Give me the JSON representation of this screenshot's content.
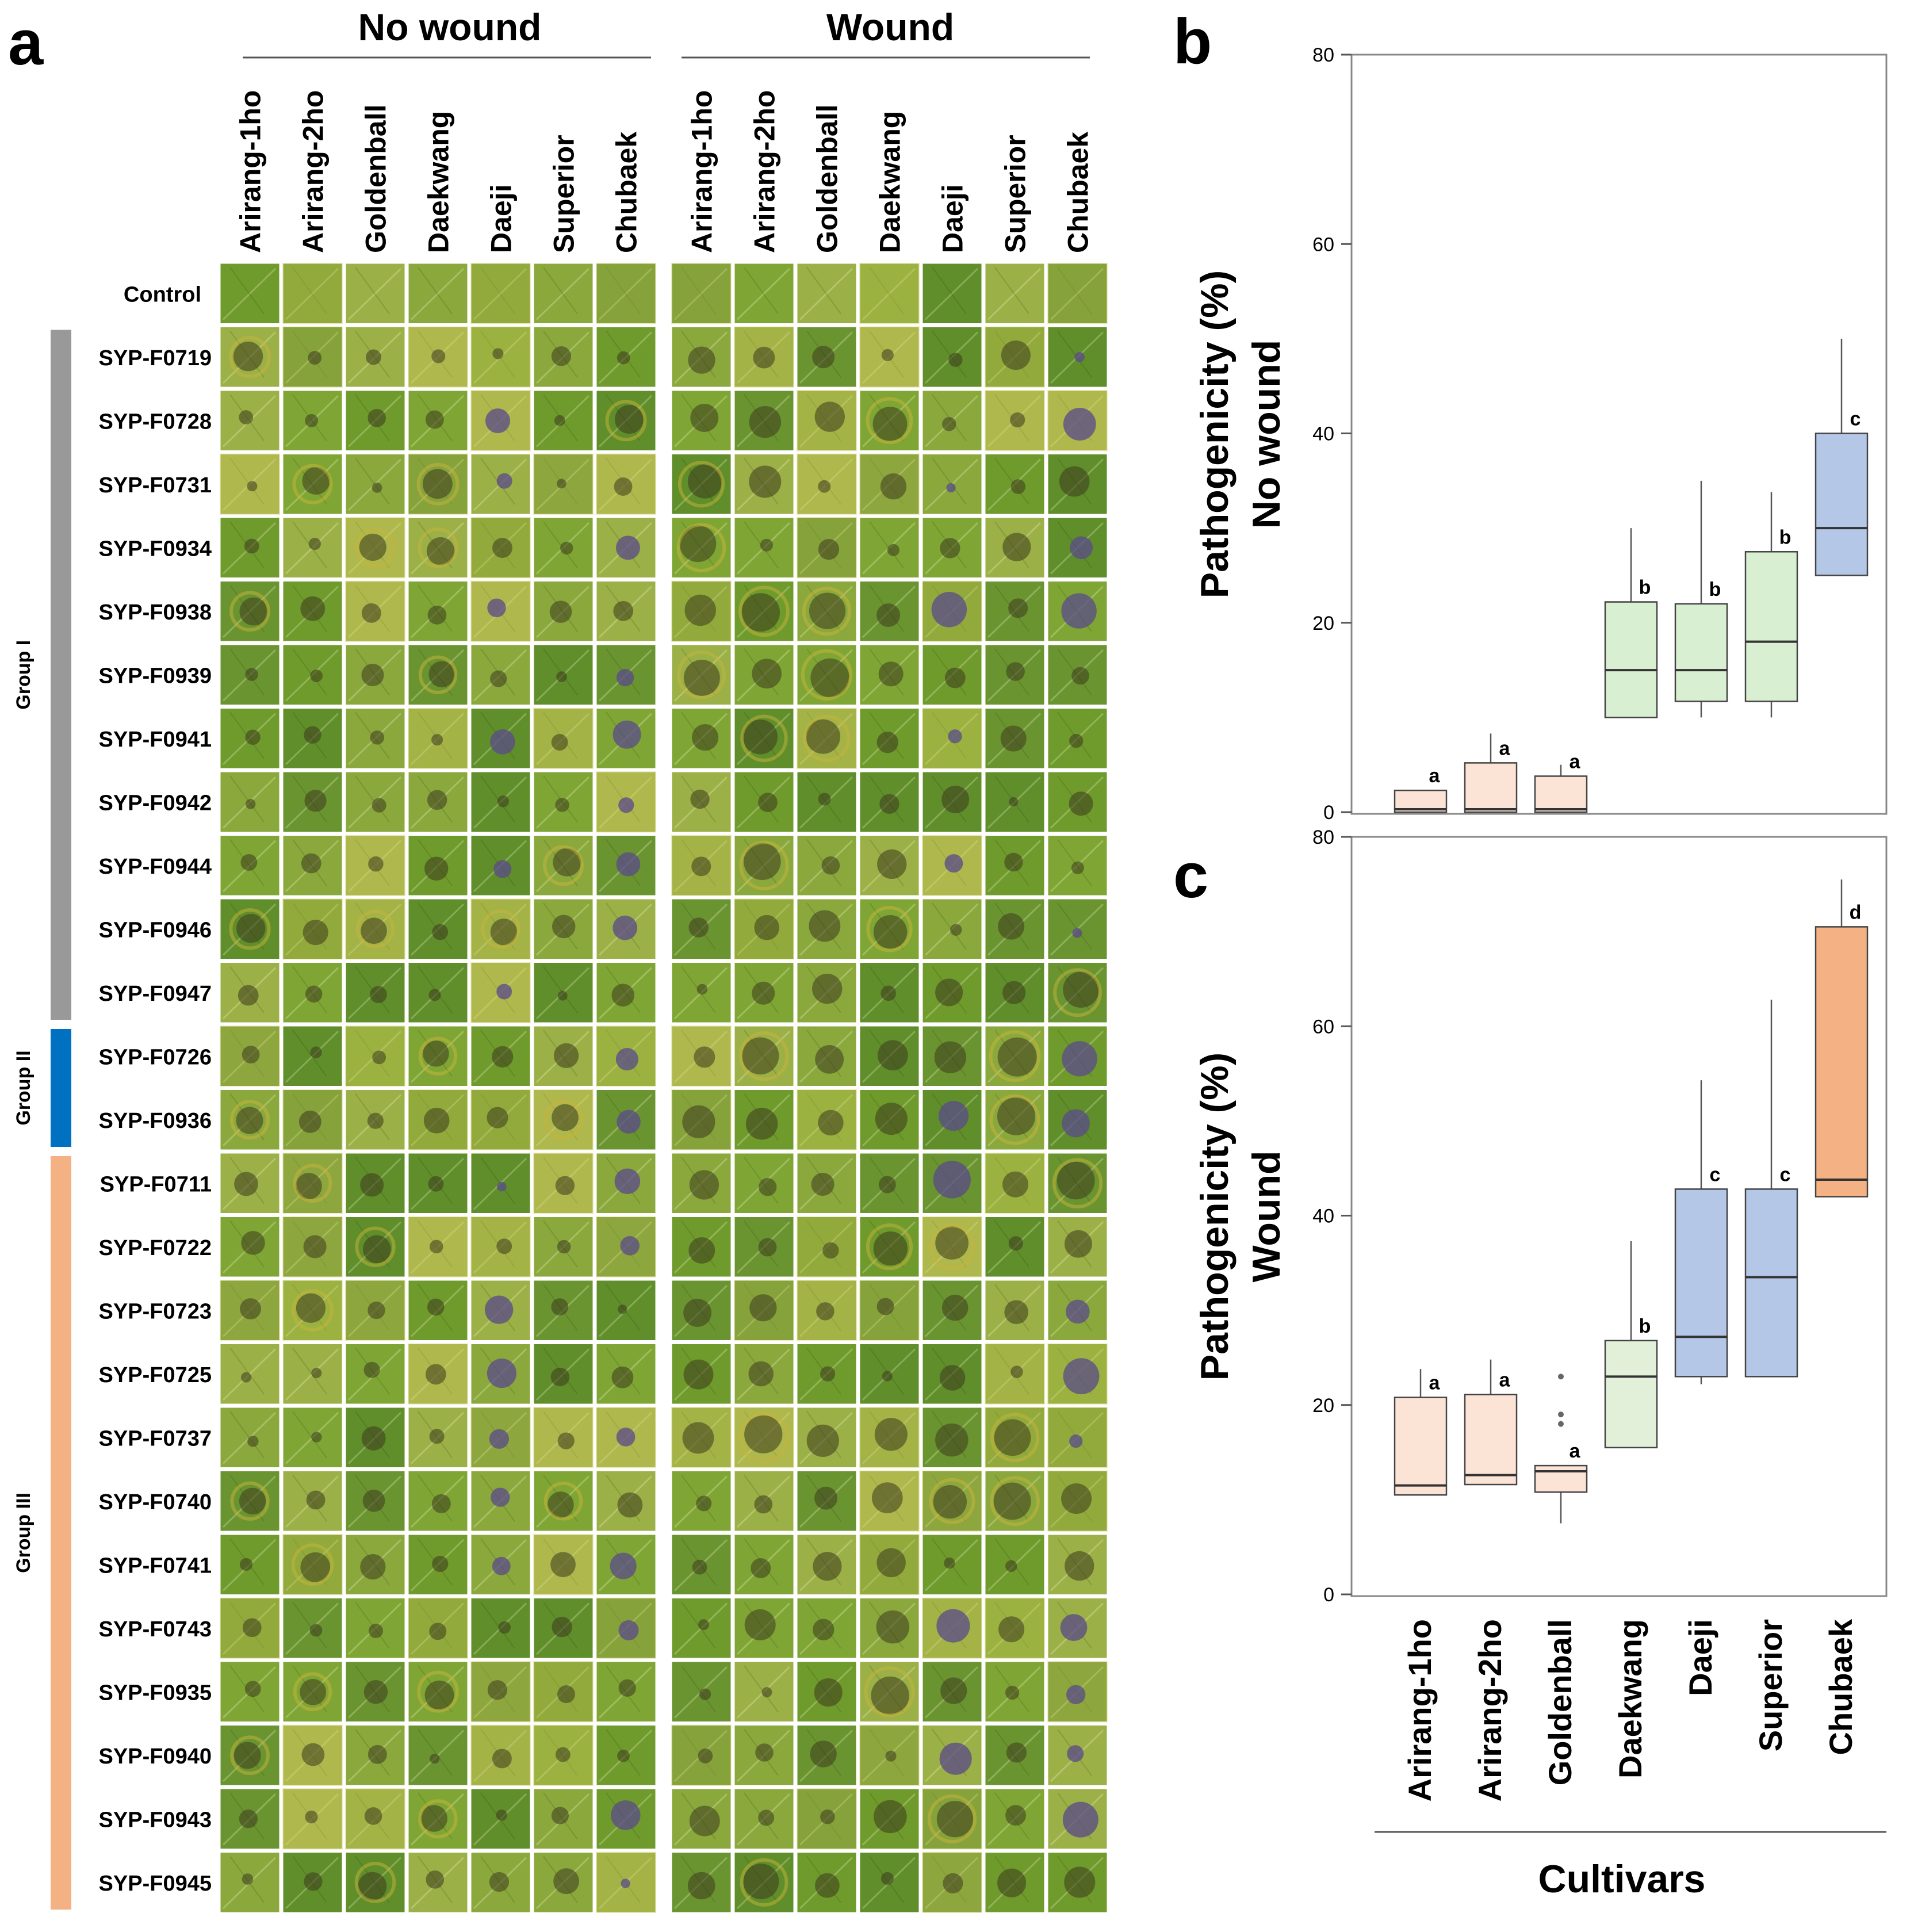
{
  "panel_labels": {
    "a": "a",
    "b": "b",
    "c": "c"
  },
  "grid": {
    "no_wound_header": "No wound",
    "wound_header": "Wound",
    "cultivars": [
      "Arirang-1ho",
      "Arirang-2ho",
      "Goldenball",
      "Daekwang",
      "Daeji",
      "Superior",
      "Chubaek"
    ],
    "control_label": "Control",
    "groups": [
      {
        "name": "Group I",
        "color": "#999999",
        "isolates": [
          "SYP-F0719",
          "SYP-F0728",
          "SYP-F0731",
          "SYP-F0934",
          "SYP-F0938",
          "SYP-F0939",
          "SYP-F0941",
          "SYP-F0942",
          "SYP-F0944",
          "SYP-F0946",
          "SYP-F0947"
        ]
      },
      {
        "name": "Group II",
        "color": "#0070c0",
        "isolates": [
          "SYP-F0726",
          "SYP-F0936"
        ]
      },
      {
        "name": "Group III",
        "color": "#f4b183",
        "isolates": [
          "SYP-F0711",
          "SYP-F0722",
          "SYP-F0723",
          "SYP-F0725",
          "SYP-F0737",
          "SYP-F0740",
          "SYP-F0741",
          "SYP-F0743",
          "SYP-F0935",
          "SYP-F0940",
          "SYP-F0943",
          "SYP-F0945"
        ]
      }
    ]
  },
  "chart_data": [
    {
      "panel": "b",
      "type": "box",
      "ylabel_line1": "Pathogenicity (%)",
      "ylabel_line2": "No wound",
      "ylim": [
        0,
        80
      ],
      "yticks": [
        0,
        20,
        40,
        60,
        80
      ],
      "categories": [
        "Arirang-1ho",
        "Arirang-2ho",
        "Goldenball",
        "Daekwang",
        "Daeji",
        "Superior",
        "Chubaek"
      ],
      "boxes": [
        {
          "q1": 0,
          "median": 0.3,
          "q3": 2.3,
          "whisker_low": 0,
          "whisker_high": 2.3,
          "outliers": [],
          "letter": "a",
          "color": "#fbe3d6"
        },
        {
          "q1": 0,
          "median": 0.3,
          "q3": 5.2,
          "whisker_low": 0,
          "whisker_high": 8.3,
          "outliers": [],
          "letter": "a",
          "color": "#fbe3d6"
        },
        {
          "q1": 0,
          "median": 0.3,
          "q3": 3.8,
          "whisker_low": 0,
          "whisker_high": 5.0,
          "outliers": [],
          "letter": "a",
          "color": "#fbe3d6"
        },
        {
          "q1": 10.0,
          "median": 15.0,
          "q3": 22.2,
          "whisker_low": 10.0,
          "whisker_high": 30.0,
          "outliers": [],
          "letter": "b",
          "color": "#d9efd1"
        },
        {
          "q1": 11.7,
          "median": 15.0,
          "q3": 22.0,
          "whisker_low": 10.0,
          "whisker_high": 35.0,
          "outliers": [],
          "letter": "b",
          "color": "#d9efd1"
        },
        {
          "q1": 11.7,
          "median": 18.0,
          "q3": 27.5,
          "whisker_low": 10.0,
          "whisker_high": 33.8,
          "outliers": [],
          "letter": "b",
          "color": "#d9efd1"
        },
        {
          "q1": 25.0,
          "median": 30.0,
          "q3": 40.0,
          "whisker_low": 25.0,
          "whisker_high": 50.0,
          "outliers": [],
          "letter": "c",
          "color": "#b4c7e7"
        }
      ]
    },
    {
      "panel": "c",
      "type": "box",
      "ylabel_line1": "Pathogenicity (%)",
      "ylabel_line2": "Wound",
      "xlabel": "Cultivars",
      "ylim": [
        0,
        80
      ],
      "yticks": [
        0,
        20,
        40,
        60,
        80
      ],
      "categories": [
        "Arirang-1ho",
        "Arirang-2ho",
        "Goldenball",
        "Daekwang",
        "Daeji",
        "Superior",
        "Chubaek"
      ],
      "boxes": [
        {
          "q1": 10.5,
          "median": 11.5,
          "q3": 20.8,
          "whisker_low": 10.5,
          "whisker_high": 23.8,
          "outliers": [],
          "letter": "a",
          "color": "#fbe3d6"
        },
        {
          "q1": 11.6,
          "median": 12.6,
          "q3": 21.1,
          "whisker_low": 11.6,
          "whisker_high": 24.8,
          "outliers": [],
          "letter": "a",
          "color": "#fbe3d6"
        },
        {
          "q1": 10.8,
          "median": 13.0,
          "q3": 13.6,
          "whisker_low": 7.5,
          "whisker_high": 13.6,
          "outliers": [
            18.0,
            19.0,
            23.0
          ],
          "letter": "a",
          "color": "#fbe3d6"
        },
        {
          "q1": 15.5,
          "median": 23.0,
          "q3": 26.8,
          "whisker_low": 15.5,
          "whisker_high": 37.3,
          "outliers": [],
          "letter": "b",
          "color": "#e2f0d9"
        },
        {
          "q1": 23.0,
          "median": 27.2,
          "q3": 42.8,
          "whisker_low": 22.2,
          "whisker_high": 54.3,
          "outliers": [],
          "letter": "c",
          "color": "#b4c7e7"
        },
        {
          "q1": 23.0,
          "median": 33.5,
          "q3": 42.8,
          "whisker_low": 23.0,
          "whisker_high": 62.8,
          "outliers": [],
          "letter": "c",
          "color": "#b4c7e7"
        },
        {
          "q1": 42.0,
          "median": 43.8,
          "q3": 70.5,
          "whisker_low": 42.0,
          "whisker_high": 75.5,
          "outliers": [],
          "letter": "d",
          "color": "#f4b183"
        }
      ]
    }
  ],
  "colors": {
    "leaf_base": [
      "#6f9a2c",
      "#7fa634",
      "#5f8e2a",
      "#8aa83c",
      "#9bb046",
      "#6a9430"
    ],
    "lesion_dark": "#3d3a1e",
    "lesion_purple": "#5a4a8a",
    "cell_border": "#ffffff"
  }
}
